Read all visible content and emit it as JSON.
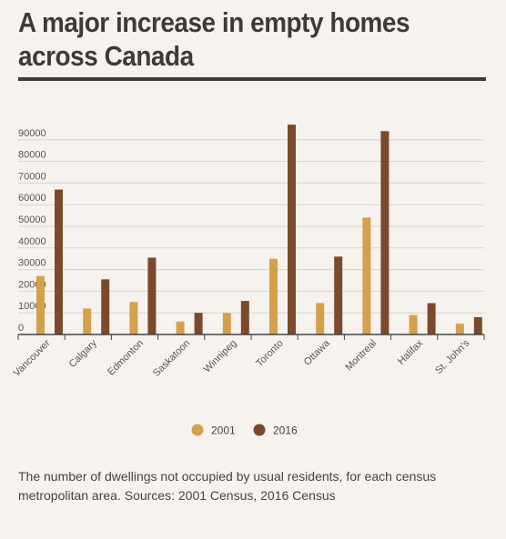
{
  "header": {
    "title_line1": "A major increase in empty homes",
    "title_line2": "across Canada"
  },
  "caption": {
    "line1": "The number of dwellings not occupied by usual residents, for each census",
    "line2": "metropolitan area. Sources: 2001 Census, 2016 Census"
  },
  "colors": {
    "series_2001": "#d3a04b",
    "series_2016": "#7b4a2c",
    "gridline": "#d8d3cb",
    "axis": "#444444"
  },
  "chart_data": {
    "type": "bar",
    "title": "A major increase in empty homes across Canada",
    "categories": [
      "Vancouver",
      "Calgary",
      "Edmonton",
      "Saskatoon",
      "Winnipeg",
      "Toronto",
      "Ottawa",
      "Montreal",
      "Halifax",
      "St. John's"
    ],
    "series": [
      {
        "name": "2001",
        "values": [
          27000,
          12000,
          15000,
          6000,
          10000,
          35000,
          14500,
          54000,
          9000,
          5000
        ]
      },
      {
        "name": "2016",
        "values": [
          67000,
          25500,
          35500,
          10000,
          15500,
          97000,
          36000,
          94000,
          14500,
          8000
        ]
      }
    ],
    "yticks": [
      "0",
      "10000",
      "20000",
      "30000",
      "40000",
      "50000",
      "60000",
      "70000",
      "80000",
      "90000"
    ],
    "ylim": [
      0,
      100000
    ],
    "grid": true,
    "legend": "bottom"
  }
}
